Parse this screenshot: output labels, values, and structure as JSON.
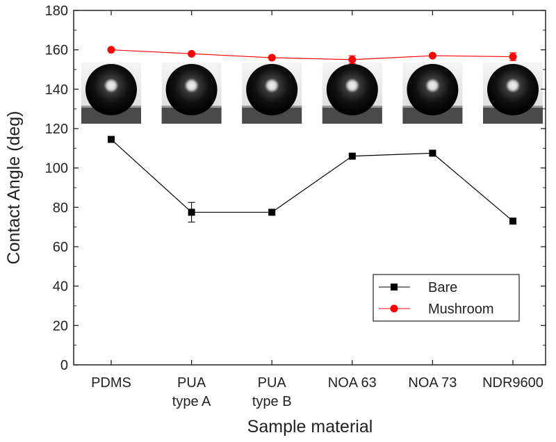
{
  "chart_data": {
    "type": "line",
    "xlabel": "Sample material",
    "ylabel": "Contact Angle (deg)",
    "ylim": [
      0,
      180
    ],
    "yticks": [
      0,
      20,
      40,
      60,
      80,
      100,
      120,
      140,
      160,
      180
    ],
    "categories": [
      [
        "PDMS"
      ],
      [
        "PUA",
        "type A"
      ],
      [
        "PUA",
        "type B"
      ],
      [
        "NOA 63"
      ],
      [
        "NOA 73"
      ],
      [
        "NDR9600"
      ]
    ],
    "series": [
      {
        "name": "Bare",
        "color": "#000000",
        "marker": "square",
        "values": [
          114.5,
          77.5,
          77.5,
          106,
          107.5,
          73
        ],
        "errors": [
          1,
          5,
          1,
          1,
          1,
          1
        ]
      },
      {
        "name": "Mushroom",
        "color": "#ff0000",
        "marker": "circle",
        "values": [
          160,
          158,
          156,
          155,
          157,
          156.5
        ],
        "errors": [
          0.5,
          0.5,
          0.5,
          2,
          0.5,
          2
        ]
      }
    ],
    "legend": {
      "position": "bottom-right",
      "entries": [
        "Bare",
        "Mushroom"
      ]
    },
    "grid": false,
    "inset_images": [
      "droplet-pdms",
      "droplet-pua-type-a",
      "droplet-pua-type-b",
      "droplet-noa-63",
      "droplet-noa-73",
      "droplet-ndr9600"
    ]
  }
}
